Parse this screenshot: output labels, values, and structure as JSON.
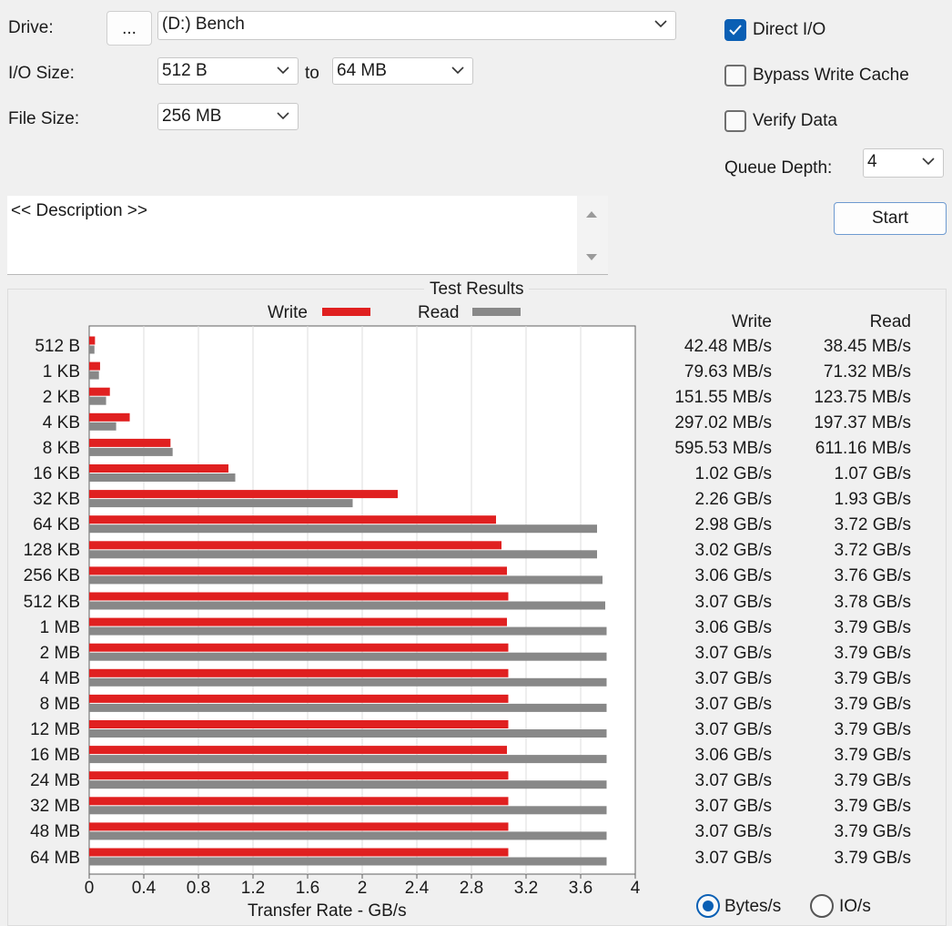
{
  "settings": {
    "drive_label": "Drive:",
    "browse_label": "...",
    "drive_value": "(D:) Bench",
    "io_size_label": "I/O Size:",
    "io_from": "512 B",
    "to_label": "to",
    "io_to": "64 MB",
    "file_size_label": "File Size:",
    "file_size": "256 MB",
    "direct_io_label": "Direct I/O",
    "direct_io_checked": true,
    "bypass_write_cache_label": "Bypass Write Cache",
    "bypass_write_cache_checked": false,
    "verify_data_label": "Verify Data",
    "verify_data_checked": false,
    "queue_depth_label": "Queue Depth:",
    "queue_depth": "4",
    "start_label": "Start",
    "description": "<< Description >>"
  },
  "results": {
    "title": "Test Results",
    "legend_write": "Write",
    "legend_read": "Read",
    "col_write": "Write",
    "col_read": "Read",
    "rows": [
      {
        "size": "512 B",
        "write": "42.48 MB/s",
        "read": "38.45 MB/s"
      },
      {
        "size": "1 KB",
        "write": "79.63 MB/s",
        "read": "71.32 MB/s"
      },
      {
        "size": "2 KB",
        "write": "151.55 MB/s",
        "read": "123.75 MB/s"
      },
      {
        "size": "4 KB",
        "write": "297.02 MB/s",
        "read": "197.37 MB/s"
      },
      {
        "size": "8 KB",
        "write": "595.53 MB/s",
        "read": "611.16 MB/s"
      },
      {
        "size": "16 KB",
        "write": "1.02 GB/s",
        "read": "1.07 GB/s"
      },
      {
        "size": "32 KB",
        "write": "2.26 GB/s",
        "read": "1.93 GB/s"
      },
      {
        "size": "64 KB",
        "write": "2.98 GB/s",
        "read": "3.72 GB/s"
      },
      {
        "size": "128 KB",
        "write": "3.02 GB/s",
        "read": "3.72 GB/s"
      },
      {
        "size": "256 KB",
        "write": "3.06 GB/s",
        "read": "3.76 GB/s"
      },
      {
        "size": "512 KB",
        "write": "3.07 GB/s",
        "read": "3.78 GB/s"
      },
      {
        "size": "1 MB",
        "write": "3.06 GB/s",
        "read": "3.79 GB/s"
      },
      {
        "size": "2 MB",
        "write": "3.07 GB/s",
        "read": "3.79 GB/s"
      },
      {
        "size": "4 MB",
        "write": "3.07 GB/s",
        "read": "3.79 GB/s"
      },
      {
        "size": "8 MB",
        "write": "3.07 GB/s",
        "read": "3.79 GB/s"
      },
      {
        "size": "12 MB",
        "write": "3.07 GB/s",
        "read": "3.79 GB/s"
      },
      {
        "size": "16 MB",
        "write": "3.06 GB/s",
        "read": "3.79 GB/s"
      },
      {
        "size": "24 MB",
        "write": "3.07 GB/s",
        "read": "3.79 GB/s"
      },
      {
        "size": "32 MB",
        "write": "3.07 GB/s",
        "read": "3.79 GB/s"
      },
      {
        "size": "48 MB",
        "write": "3.07 GB/s",
        "read": "3.79 GB/s"
      },
      {
        "size": "64 MB",
        "write": "3.07 GB/s",
        "read": "3.79 GB/s"
      }
    ],
    "units_bytes_label": "Bytes/s",
    "units_io_label": "IO/s",
    "units_selected": "Bytes/s"
  },
  "colors": {
    "write": "#e02020",
    "read": "#888888",
    "accent": "#0a5fb4"
  },
  "chart_data": {
    "type": "bar",
    "orientation": "horizontal",
    "title": "Test Results",
    "xlabel": "Transfer Rate - GB/s",
    "ylabel": "",
    "xlim": [
      0,
      4
    ],
    "xticks": [
      "0",
      "0.4",
      "0.8",
      "1.2",
      "1.6",
      "2",
      "2.4",
      "2.8",
      "3.2",
      "3.6",
      "4"
    ],
    "grid": true,
    "legend": "top",
    "categories": [
      "512 B",
      "1 KB",
      "2 KB",
      "4 KB",
      "8 KB",
      "16 KB",
      "32 KB",
      "64 KB",
      "128 KB",
      "256 KB",
      "512 KB",
      "1 MB",
      "2 MB",
      "4 MB",
      "8 MB",
      "12 MB",
      "16 MB",
      "24 MB",
      "32 MB",
      "48 MB",
      "64 MB"
    ],
    "series": [
      {
        "name": "Write",
        "values": [
          0.04248,
          0.07963,
          0.15155,
          0.29702,
          0.59553,
          1.02,
          2.26,
          2.98,
          3.02,
          3.06,
          3.07,
          3.06,
          3.07,
          3.07,
          3.07,
          3.07,
          3.06,
          3.07,
          3.07,
          3.07,
          3.07
        ]
      },
      {
        "name": "Read",
        "values": [
          0.03845,
          0.07132,
          0.12375,
          0.19737,
          0.61116,
          1.07,
          1.93,
          3.72,
          3.72,
          3.76,
          3.78,
          3.79,
          3.79,
          3.79,
          3.79,
          3.79,
          3.79,
          3.79,
          3.79,
          3.79,
          3.79
        ]
      }
    ]
  }
}
